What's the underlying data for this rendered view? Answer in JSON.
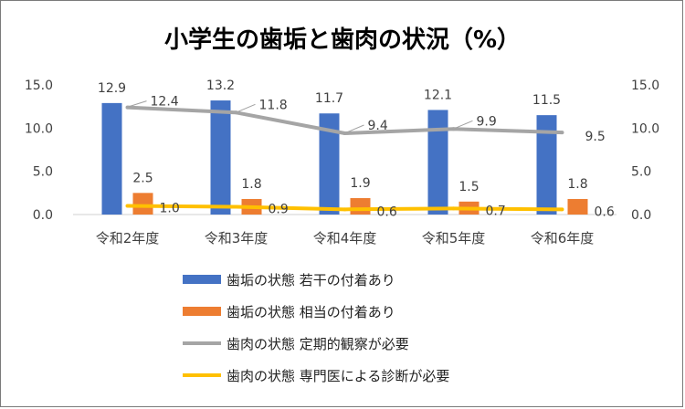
{
  "chart_data": {
    "type": "bar",
    "title": "小学生の歯垢と歯肉の状況（%）",
    "categories": [
      "令和2年度",
      "令和3年度",
      "令和4年度",
      "令和5年度",
      "令和6年度"
    ],
    "ylim": [
      0,
      15
    ],
    "y_ticks": [
      "0.0",
      "5.0",
      "10.0",
      "15.0"
    ],
    "grid": false,
    "legend_position": "bottom",
    "series": [
      {
        "name": "歯垢の状態 若干の付着あり",
        "kind": "bar",
        "color": "#4472C4",
        "values": [
          12.9,
          13.2,
          11.7,
          12.1,
          11.5
        ]
      },
      {
        "name": "歯垢の状態 相当の付着あり",
        "kind": "bar",
        "color": "#ED7D31",
        "values": [
          2.5,
          1.8,
          1.9,
          1.5,
          1.8
        ]
      },
      {
        "name": "歯肉の状態 定期的観察が必要",
        "kind": "line",
        "color": "#A5A5A5",
        "values": [
          12.4,
          11.8,
          9.4,
          9.9,
          9.5
        ]
      },
      {
        "name": "歯肉の状態 専門医による診断が必要",
        "kind": "line",
        "color": "#FFC000",
        "values": [
          1.0,
          0.9,
          0.6,
          0.7,
          0.6
        ]
      }
    ]
  }
}
